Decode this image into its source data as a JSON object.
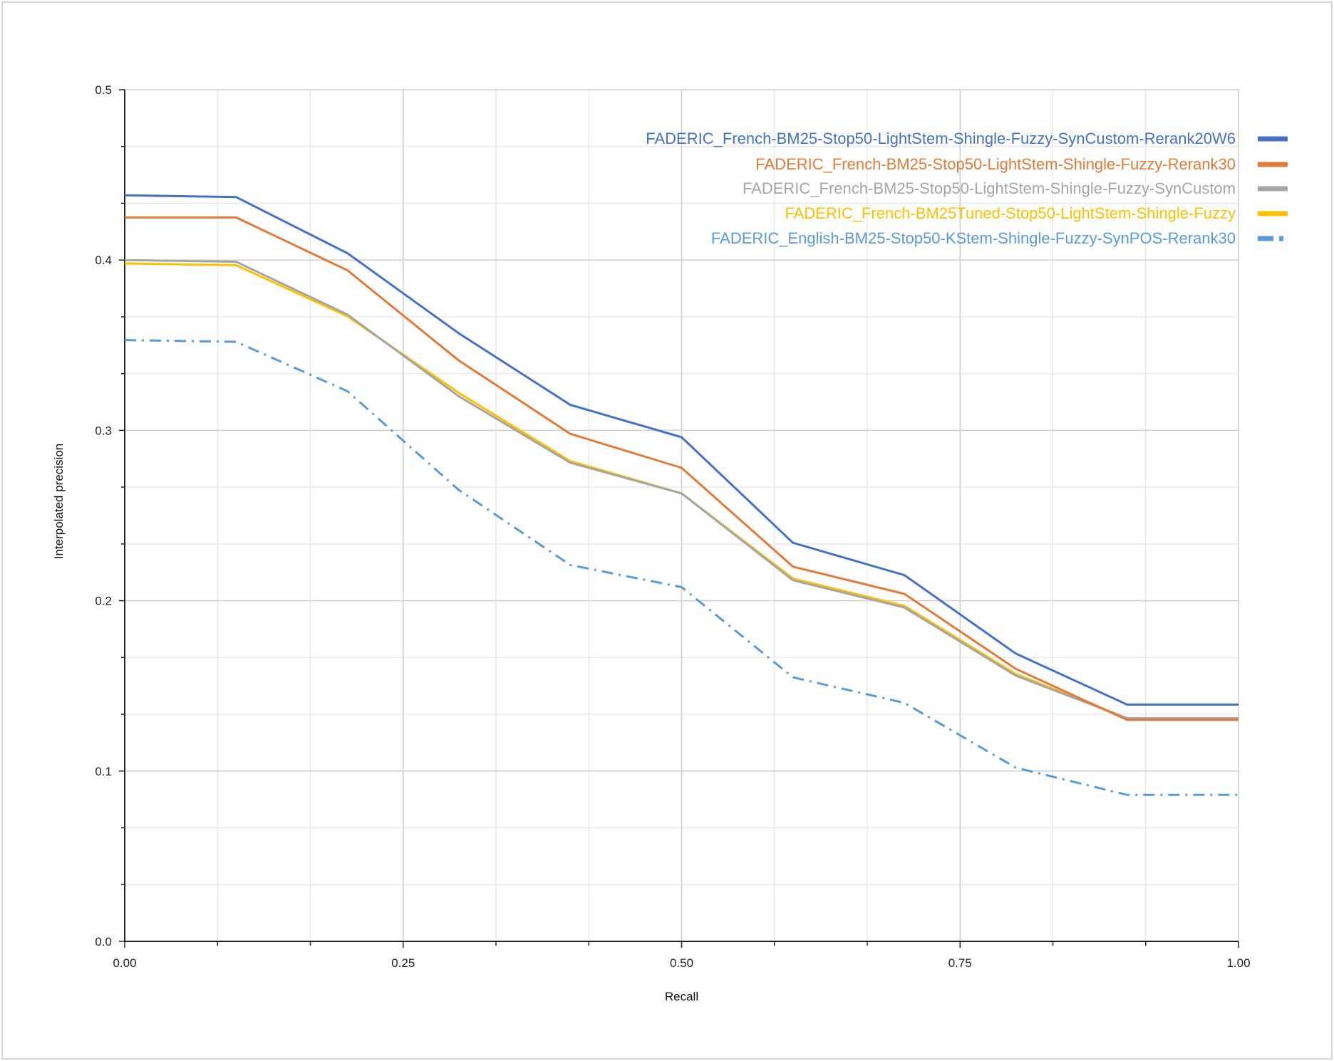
{
  "chart_data": {
    "type": "line",
    "title": "",
    "xlabel": "Recall",
    "ylabel": "Interpolated precision",
    "xlim": [
      0,
      1
    ],
    "ylim": [
      0,
      0.5
    ],
    "x_ticks": [
      "0.00",
      "0.25",
      "0.50",
      "0.75",
      "1.00"
    ],
    "y_ticks": [
      "0.0",
      "0.1",
      "0.2",
      "0.3",
      "0.4",
      "0.5"
    ],
    "grid": true,
    "legend_position": "top-right",
    "x": [
      0.0,
      0.1,
      0.2,
      0.3,
      0.4,
      0.5,
      0.6,
      0.7,
      0.8,
      0.9,
      1.0
    ],
    "series": [
      {
        "name": "FADERIC_French-BM25-Stop50-LightStem-Shingle-Fuzzy-SynCustom-Rerank20W6",
        "color": "#4472c4",
        "style": "solid",
        "values": [
          0.438,
          0.437,
          0.404,
          0.357,
          0.315,
          0.296,
          0.234,
          0.215,
          0.169,
          0.139,
          0.139
        ]
      },
      {
        "name": "FADERIC_French-BM25-Stop50-LightStem-Shingle-Fuzzy-Rerank30",
        "color": "#e07b39",
        "style": "solid",
        "values": [
          0.425,
          0.425,
          0.394,
          0.341,
          0.298,
          0.278,
          0.22,
          0.204,
          0.16,
          0.13,
          0.13
        ]
      },
      {
        "name": "FADERIC_French-BM25-Stop50-LightStem-Shingle-Fuzzy-SynCustom",
        "color": "#a5a5a5",
        "style": "solid",
        "values": [
          0.4,
          0.399,
          0.368,
          0.32,
          0.281,
          0.263,
          0.212,
          0.196,
          0.156,
          0.131,
          0.131
        ]
      },
      {
        "name": "FADERIC_French-BM25Tuned-Stop50-LightStem-Shingle-Fuzzy",
        "color": "#ffc000",
        "style": "solid",
        "values": [
          0.398,
          0.397,
          0.367,
          0.322,
          0.282,
          0.263,
          0.213,
          0.197,
          0.157,
          0.131,
          0.131
        ]
      },
      {
        "name": "FADERIC_English-BM25-Stop50-KStem-Shingle-Fuzzy-SynPOS-Rerank30",
        "color": "#5b9bd5",
        "style": "dashdot",
        "values": [
          0.353,
          0.352,
          0.323,
          0.265,
          0.221,
          0.208,
          0.155,
          0.14,
          0.102,
          0.086,
          0.086
        ]
      }
    ]
  }
}
